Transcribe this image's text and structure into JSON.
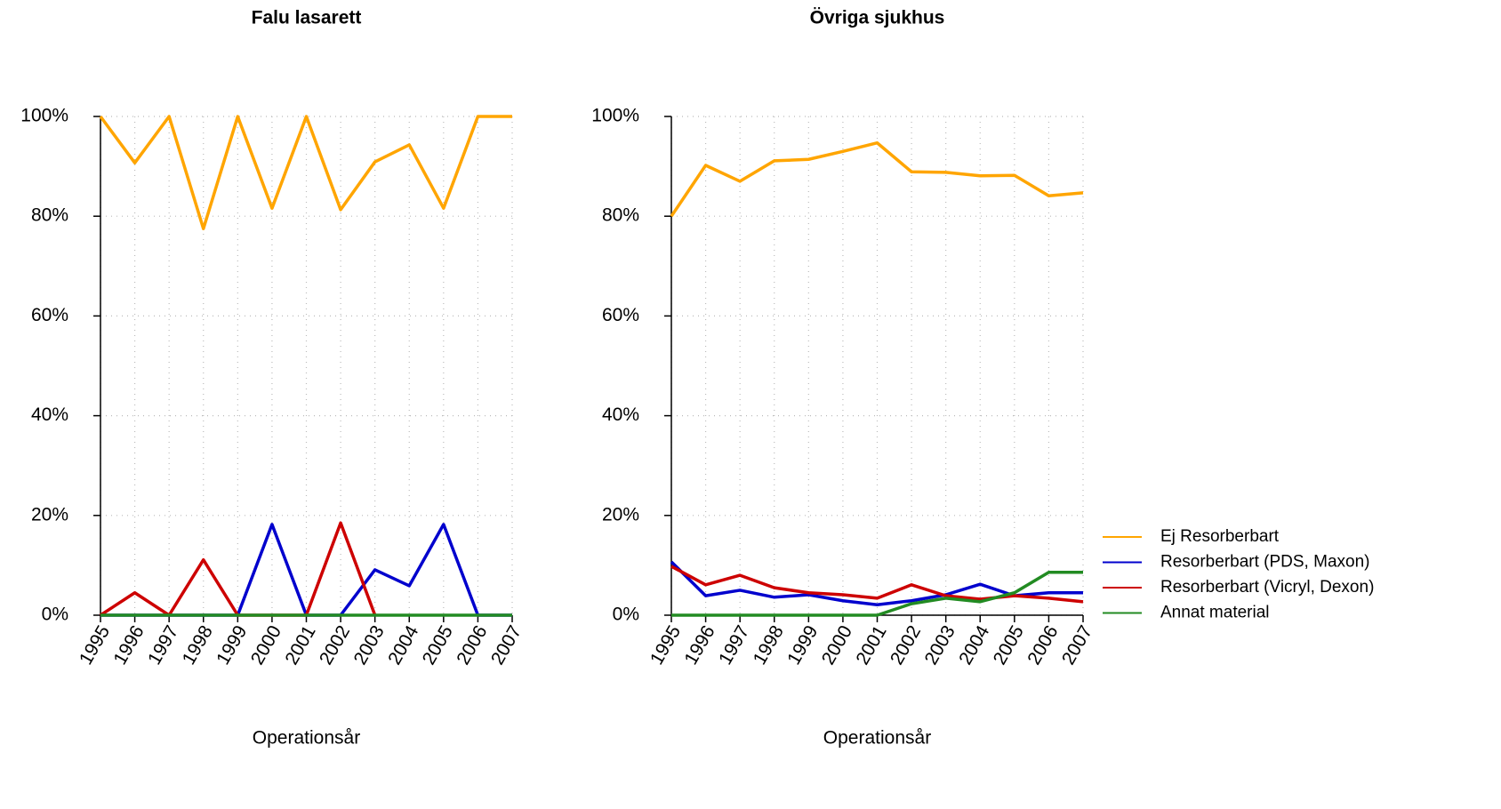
{
  "chart_data": [
    {
      "type": "line",
      "title": "Falu lasarett",
      "x_label": "Operationsår",
      "x": [
        1995,
        1996,
        1997,
        1998,
        1999,
        2000,
        2001,
        2002,
        2003,
        2004,
        2005,
        2006,
        2007
      ],
      "xlim": [
        1995,
        2007
      ],
      "xticks": [
        1995,
        1996,
        1997,
        1998,
        1999,
        2000,
        2001,
        2002,
        2003,
        2004,
        2005,
        2006,
        2007
      ],
      "ylim": [
        0,
        100
      ],
      "yticks": [
        {
          "value": 0,
          "label": "0%"
        },
        {
          "value": 20,
          "label": "20%"
        },
        {
          "value": 40,
          "label": "40%"
        },
        {
          "value": 60,
          "label": "60%"
        },
        {
          "value": 80,
          "label": "80%"
        },
        {
          "value": 100,
          "label": "100%"
        }
      ],
      "grid": true,
      "series": [
        {
          "color": "#ffa500",
          "values": [
            100,
            90.7,
            100,
            77.5,
            100,
            81.6,
            100,
            81.3,
            90.9,
            94.3,
            81.6,
            100,
            100
          ]
        },
        {
          "color": "#0000cd",
          "values": [
            0,
            0,
            0,
            0,
            0,
            18.2,
            0,
            0,
            9.1,
            5.9,
            18.2,
            0,
            0
          ]
        },
        {
          "color": "#cd0000",
          "values": [
            0,
            4.5,
            0,
            11.1,
            0,
            0,
            0,
            18.5,
            0,
            null,
            null,
            null,
            null
          ]
        },
        {
          "color": "#228b22",
          "values": [
            0,
            0,
            0,
            0,
            0,
            0,
            0,
            0,
            0,
            0,
            0,
            0,
            0
          ]
        }
      ]
    },
    {
      "type": "line",
      "title": "Övriga sjukhus",
      "x_label": "Operationsår",
      "x": [
        1995,
        1996,
        1997,
        1998,
        1999,
        2000,
        2001,
        2002,
        2003,
        2004,
        2005,
        2006,
        2007
      ],
      "xlim": [
        1995,
        2007
      ],
      "xticks": [
        1995,
        1996,
        1997,
        1998,
        1999,
        2000,
        2001,
        2002,
        2003,
        2004,
        2005,
        2006,
        2007
      ],
      "ylim": [
        0,
        100
      ],
      "yticks": [
        {
          "value": 0,
          "label": "0%"
        },
        {
          "value": 20,
          "label": "20%"
        },
        {
          "value": 40,
          "label": "40%"
        },
        {
          "value": 60,
          "label": "60%"
        },
        {
          "value": 80,
          "label": "80%"
        },
        {
          "value": 100,
          "label": "100%"
        }
      ],
      "grid": true,
      "legend": "right",
      "series": [
        {
          "name": "Ej Resorberbart",
          "color": "#ffa500",
          "values": [
            80.0,
            90.2,
            87.0,
            91.1,
            91.4,
            93.0,
            94.7,
            88.9,
            88.8,
            88.1,
            88.2,
            84.1,
            84.7
          ]
        },
        {
          "name": "Resorberbart (PDS, Maxon)",
          "color": "#0000cd",
          "values": [
            10.7,
            3.9,
            5.0,
            3.6,
            4.1,
            2.9,
            2.1,
            2.9,
            4.1,
            6.2,
            3.9,
            4.5,
            4.5
          ]
        },
        {
          "name": "Resorberbart (Vicryl, Dexon)",
          "color": "#cd0000",
          "values": [
            9.8,
            6.1,
            8.0,
            5.5,
            4.5,
            4.1,
            3.4,
            6.1,
            3.9,
            3.2,
            3.9,
            3.4,
            2.7
          ]
        },
        {
          "name": "Annat material",
          "color": "#228b22",
          "values": [
            0,
            0,
            0,
            0,
            0,
            0,
            0,
            2.3,
            3.4,
            2.7,
            4.5,
            8.6,
            8.6
          ]
        }
      ]
    }
  ]
}
